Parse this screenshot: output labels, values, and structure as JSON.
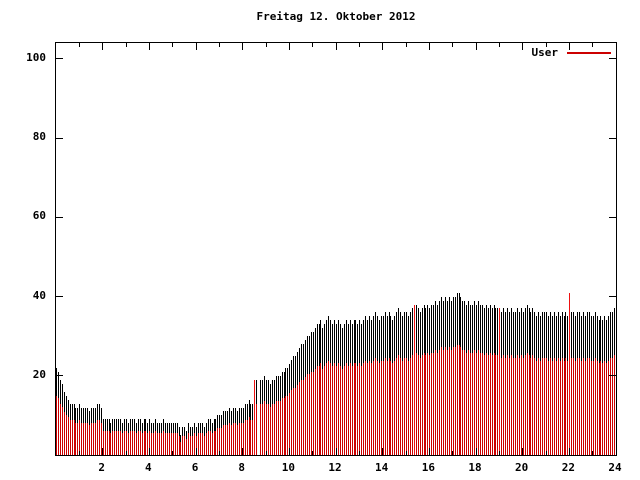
{
  "title": "Freitag 12. Oktober 2012",
  "legend": {
    "label": "User"
  },
  "colors": {
    "bar": "#cc0000",
    "bar_cap": "#000000",
    "bar_bright": "#ee1111",
    "legend_line": "#cc0000",
    "axis": "#000000",
    "background": "#ffffff"
  },
  "chart_data": {
    "type": "bar",
    "title": "Freitag 12. Oktober 2012",
    "series_name": "User",
    "xlabel": "",
    "ylabel": "",
    "x_range": [
      0,
      24
    ],
    "ylim": [
      0,
      104
    ],
    "yticks": [
      20,
      40,
      60,
      80,
      100
    ],
    "ytick_labels": [
      "20",
      "40",
      "60",
      "80",
      "100"
    ],
    "xticks_labeled": [
      2,
      4,
      6,
      8,
      10,
      12,
      14,
      16,
      18,
      20,
      22,
      24
    ],
    "xtick_labels": [
      "2",
      "4",
      "6",
      "8",
      "10",
      "12",
      "14",
      "16",
      "18",
      "20",
      "22",
      "24"
    ],
    "xticks_minor": [
      1,
      3,
      5,
      7,
      9,
      11,
      13,
      15,
      17,
      19,
      21,
      23
    ],
    "sample_interval_minutes": 5,
    "grid": false,
    "legend_position": "top-right",
    "values": [
      22,
      21,
      19,
      18,
      16,
      15,
      14,
      13,
      13,
      13,
      12,
      12,
      13,
      12,
      12,
      12,
      12,
      11,
      12,
      12,
      12,
      13,
      13,
      12,
      9,
      9,
      9,
      9,
      8,
      9,
      9,
      9,
      9,
      9,
      8,
      9,
      9,
      8,
      9,
      9,
      9,
      8,
      9,
      9,
      8,
      9,
      9,
      8,
      9,
      8,
      8,
      9,
      8,
      8,
      8,
      9,
      8,
      8,
      8,
      8,
      8,
      8,
      8,
      7,
      5,
      7,
      7,
      6,
      8,
      7,
      7,
      8,
      7,
      8,
      8,
      8,
      7,
      8,
      9,
      9,
      8,
      9,
      9,
      10,
      10,
      10,
      11,
      11,
      11,
      12,
      11,
      12,
      12,
      11,
      12,
      12,
      12,
      13,
      13,
      14,
      13,
      13,
      19,
      19,
      0,
      19,
      19,
      20,
      19,
      19,
      18,
      19,
      19,
      20,
      20,
      20,
      21,
      21,
      22,
      22,
      23,
      24,
      25,
      25,
      26,
      27,
      28,
      28,
      29,
      30,
      30,
      31,
      31,
      32,
      33,
      33,
      34,
      32,
      33,
      34,
      35,
      34,
      33,
      34,
      33,
      34,
      33,
      32,
      33,
      34,
      33,
      34,
      33,
      34,
      34,
      33,
      34,
      33,
      34,
      35,
      34,
      35,
      34,
      35,
      36,
      35,
      34,
      35,
      35,
      36,
      35,
      36,
      35,
      34,
      35,
      36,
      37,
      36,
      35,
      36,
      36,
      35,
      36,
      37,
      38,
      38,
      37,
      36,
      37,
      38,
      37,
      38,
      37,
      38,
      38,
      39,
      38,
      39,
      40,
      39,
      40,
      39,
      40,
      39,
      40,
      40,
      41,
      41,
      40,
      39,
      39,
      38,
      39,
      38,
      38,
      39,
      38,
      39,
      38,
      38,
      37,
      38,
      37,
      38,
      37,
      38,
      37,
      37,
      37,
      36,
      37,
      36,
      37,
      36,
      37,
      36,
      36,
      37,
      36,
      37,
      36,
      37,
      38,
      37,
      36,
      37,
      36,
      35,
      36,
      35,
      36,
      36,
      36,
      35,
      36,
      35,
      36,
      35,
      36,
      35,
      36,
      35,
      36,
      35,
      41,
      36,
      36,
      35,
      36,
      36,
      35,
      36,
      35,
      36,
      36,
      35,
      35,
      36,
      35,
      34,
      35,
      34,
      35,
      34,
      35,
      36,
      36,
      37
    ],
    "highlight_indices": [
      102,
      184,
      228,
      264
    ]
  }
}
